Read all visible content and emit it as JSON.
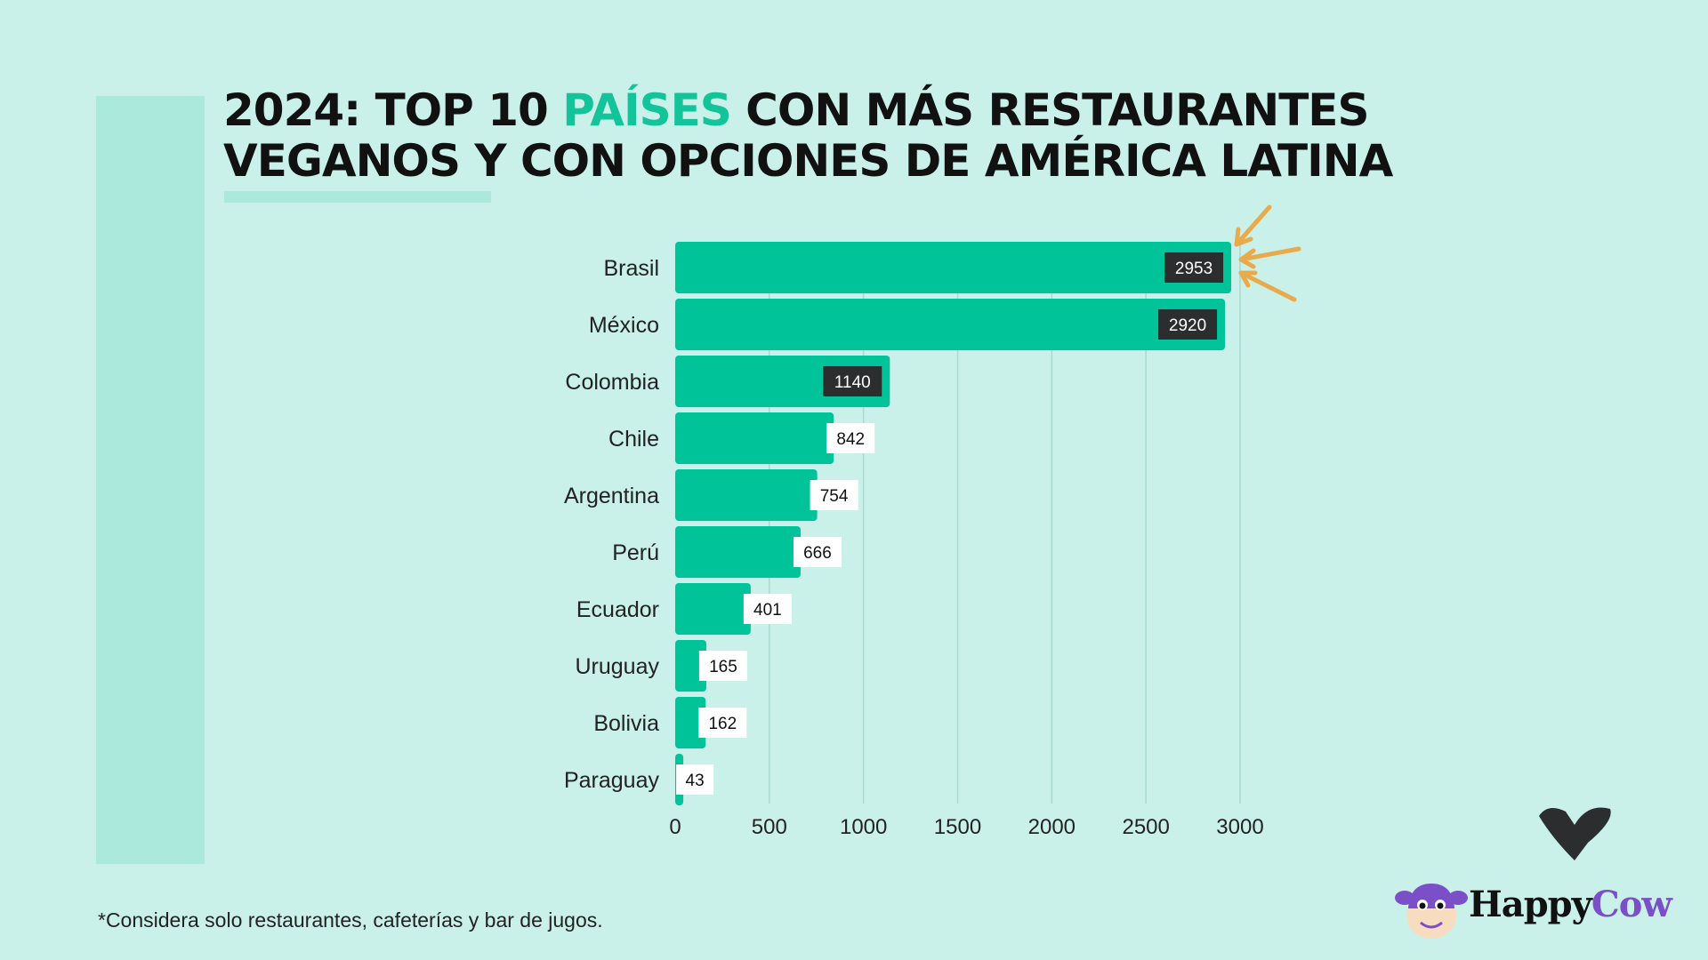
{
  "title": {
    "line1_pre": "2024: TOP 10 ",
    "line1_accent": "PAÍSES",
    "line1_post": " CON MÁS RESTAURANTES",
    "line2": "VEGANOS Y CON OPCIONES DE AMÉRICA LATINA"
  },
  "footnote": "*Considera solo restaurantes, cafeterías y bar de jugos.",
  "logo": {
    "word1": "Happy",
    "word2": "Cow"
  },
  "colors": {
    "background": "#c9f1ea",
    "bar": "#00c39a",
    "accent": "#13c39a",
    "label_dark": "#2b2d2f",
    "arrows": "#e8aa4a",
    "logo_purple": "#7a4fc7"
  },
  "icons": [
    "heart-icon",
    "arrows-icon",
    "happycow-mascot-icon"
  ],
  "chart_data": {
    "type": "bar",
    "orientation": "horizontal",
    "categories": [
      "Brasil",
      "México",
      "Colombia",
      "Chile",
      "Argentina",
      "Perú",
      "Ecuador",
      "Uruguay",
      "Bolivia",
      "Paraguay"
    ],
    "values": [
      2953,
      2920,
      1140,
      842,
      754,
      666,
      401,
      165,
      162,
      43
    ],
    "xticks": [
      0,
      500,
      1000,
      1500,
      2000,
      2500,
      3000
    ],
    "xlim": [
      0,
      3000
    ],
    "grid": "vertical",
    "xlabel": "",
    "ylabel": ""
  }
}
